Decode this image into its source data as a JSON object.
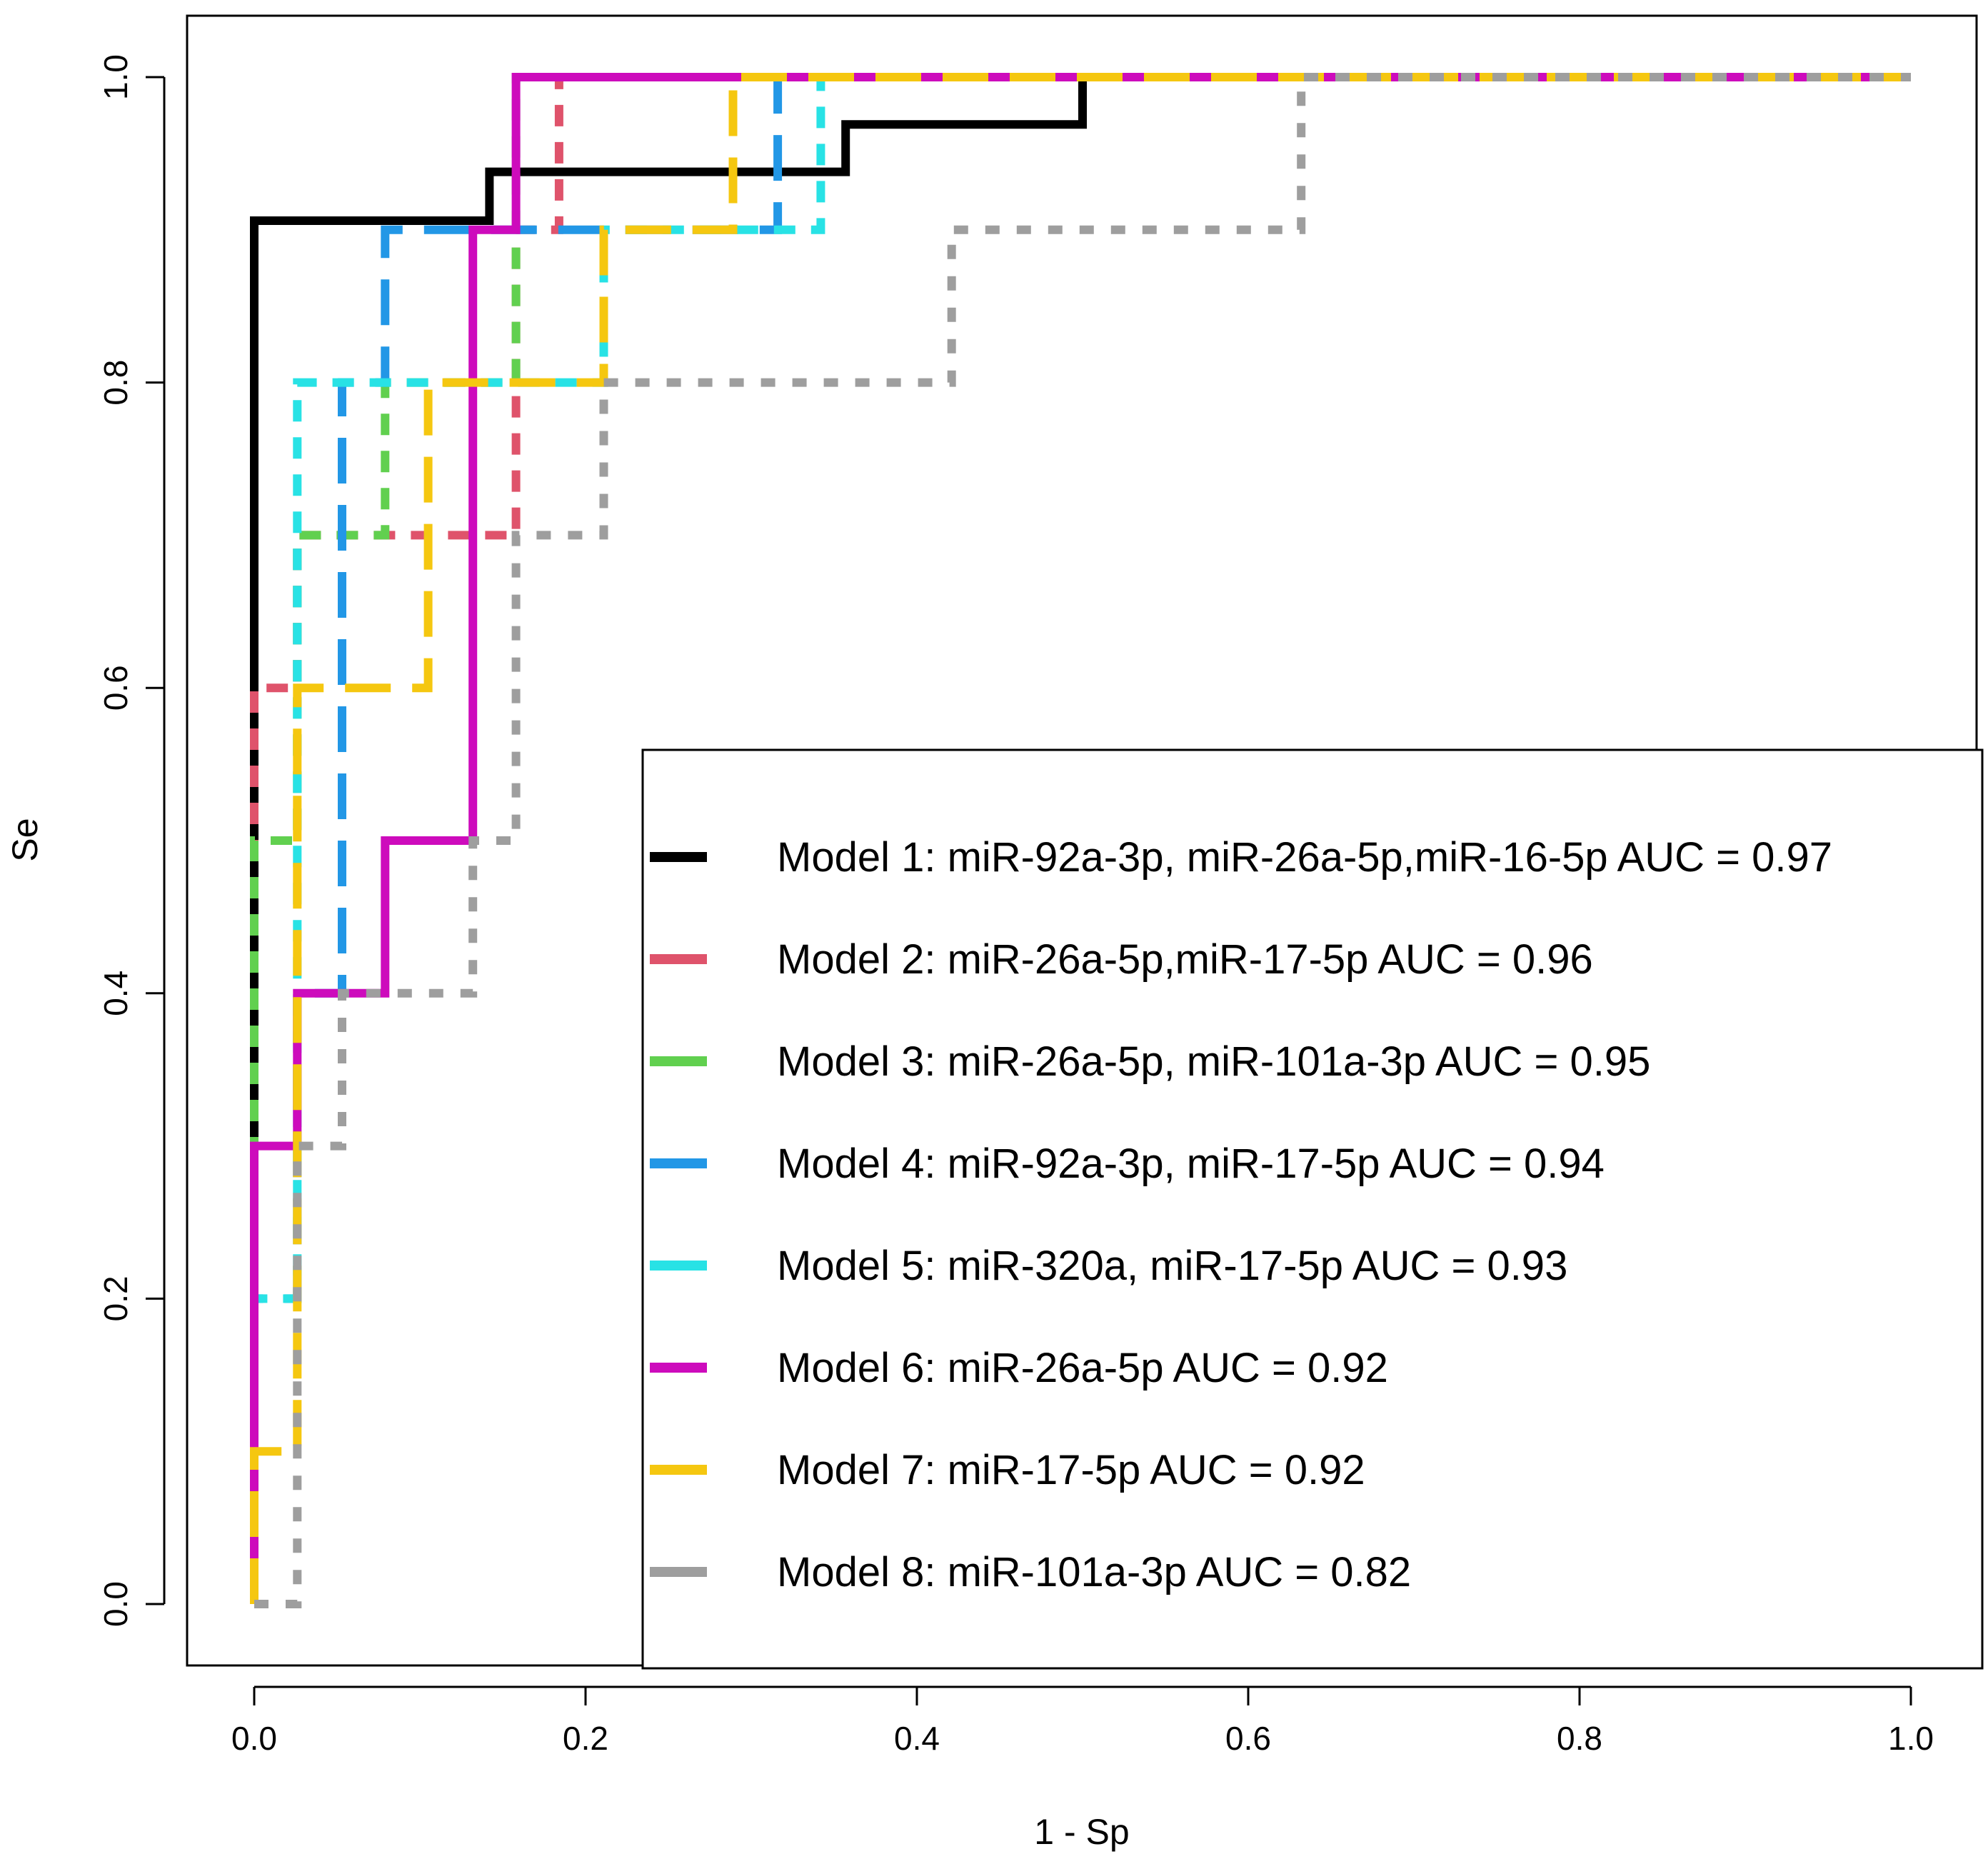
{
  "chart_data": {
    "type": "line",
    "title": "",
    "xlabel": "1 - Sp",
    "ylabel": "Se",
    "xlim": [
      0,
      1
    ],
    "ylim": [
      0,
      1
    ],
    "x_ticks": [
      "0.0",
      "0.2",
      "0.4",
      "0.6",
      "0.8",
      "1.0"
    ],
    "y_ticks": [
      "0.0",
      "0.2",
      "0.4",
      "0.6",
      "0.8",
      "1.0"
    ],
    "grid": false,
    "legend_position": "bottom-right",
    "series": [
      {
        "name": "Model 1: miR-92a-3p, miR-26a-5p,miR-16-5p AUC =  0.97",
        "color": "#000000",
        "line_style": "solid",
        "points": [
          [
            0,
            0
          ],
          [
            0,
            0.906
          ],
          [
            0.142,
            0.906
          ],
          [
            0.142,
            0.938
          ],
          [
            0.357,
            0.938
          ],
          [
            0.357,
            0.969
          ],
          [
            0.5,
            0.969
          ],
          [
            0.5,
            1
          ],
          [
            1,
            1
          ]
        ]
      },
      {
        "name": "Model 2: miR-26a-5p,miR-17-5p AUC =  0.96",
        "color": "#DF536B",
        "line_style": "dashed",
        "points": [
          [
            0,
            0
          ],
          [
            0,
            0.6
          ],
          [
            0.026,
            0.6
          ],
          [
            0.026,
            0.7
          ],
          [
            0.158,
            0.7
          ],
          [
            0.158,
            0.9
          ],
          [
            0.184,
            0.9
          ],
          [
            0.184,
            1
          ],
          [
            1,
            1
          ]
        ]
      },
      {
        "name": "Model 3: miR-26a-5p, miR-101a-3p AUC =  0.95",
        "color": "#61D04F",
        "line_style": "dashed",
        "points": [
          [
            0,
            0
          ],
          [
            0,
            0.5
          ],
          [
            0.026,
            0.5
          ],
          [
            0.026,
            0.7
          ],
          [
            0.079,
            0.7
          ],
          [
            0.079,
            0.8
          ],
          [
            0.158,
            0.8
          ],
          [
            0.158,
            1
          ],
          [
            1,
            1
          ]
        ]
      },
      {
        "name": "Model 4: miR-92a-3p, miR-17-5p AUC =  0.94",
        "color": "#2297E6",
        "line_style": "longdash",
        "points": [
          [
            0,
            0
          ],
          [
            0,
            0.2
          ],
          [
            0.026,
            0.2
          ],
          [
            0.026,
            0.4
          ],
          [
            0.053,
            0.4
          ],
          [
            0.053,
            0.8
          ],
          [
            0.079,
            0.8
          ],
          [
            0.079,
            0.9
          ],
          [
            0.316,
            0.9
          ],
          [
            0.316,
            1
          ],
          [
            1,
            1
          ]
        ]
      },
      {
        "name": "Model 5: miR-320a, miR-17-5p AUC =  0.93",
        "color": "#28E2E5",
        "line_style": "dashed",
        "points": [
          [
            0,
            0
          ],
          [
            0,
            0.2
          ],
          [
            0.026,
            0.2
          ],
          [
            0.026,
            0.8
          ],
          [
            0.211,
            0.8
          ],
          [
            0.211,
            0.9
          ],
          [
            0.342,
            0.9
          ],
          [
            0.342,
            1
          ],
          [
            1,
            1
          ]
        ]
      },
      {
        "name": "Model 6: miR-26a-5p AUC =  0.92",
        "color": "#CD0BBC",
        "line_style": "solid",
        "points": [
          [
            0,
            0
          ],
          [
            0,
            0.3
          ],
          [
            0.026,
            0.3
          ],
          [
            0.026,
            0.4
          ],
          [
            0.079,
            0.4
          ],
          [
            0.079,
            0.5
          ],
          [
            0.132,
            0.5
          ],
          [
            0.132,
            0.9
          ],
          [
            0.158,
            0.9
          ],
          [
            0.158,
            1
          ],
          [
            1,
            1
          ]
        ]
      },
      {
        "name": "Model 7: miR-17-5p AUC =  0.92",
        "color": "#F5C710",
        "line_style": "longdash",
        "points": [
          [
            0,
            0
          ],
          [
            0,
            0.1
          ],
          [
            0.026,
            0.1
          ],
          [
            0.026,
            0.6
          ],
          [
            0.105,
            0.6
          ],
          [
            0.105,
            0.8
          ],
          [
            0.211,
            0.8
          ],
          [
            0.211,
            0.9
          ],
          [
            0.289,
            0.9
          ],
          [
            0.289,
            1
          ],
          [
            1,
            1
          ]
        ]
      },
      {
        "name": "Model 8: miR-101a-3p AUC =  0.82",
        "color": "#9E9E9E",
        "line_style": "dotted",
        "points": [
          [
            0,
            0
          ],
          [
            0.026,
            0
          ],
          [
            0.026,
            0.3
          ],
          [
            0.053,
            0.3
          ],
          [
            0.053,
            0.4
          ],
          [
            0.132,
            0.4
          ],
          [
            0.132,
            0.5
          ],
          [
            0.158,
            0.5
          ],
          [
            0.158,
            0.7
          ],
          [
            0.211,
            0.7
          ],
          [
            0.211,
            0.8
          ],
          [
            0.421,
            0.8
          ],
          [
            0.421,
            0.9
          ],
          [
            0.632,
            0.9
          ],
          [
            0.632,
            1
          ],
          [
            1,
            1
          ]
        ]
      }
    ]
  }
}
